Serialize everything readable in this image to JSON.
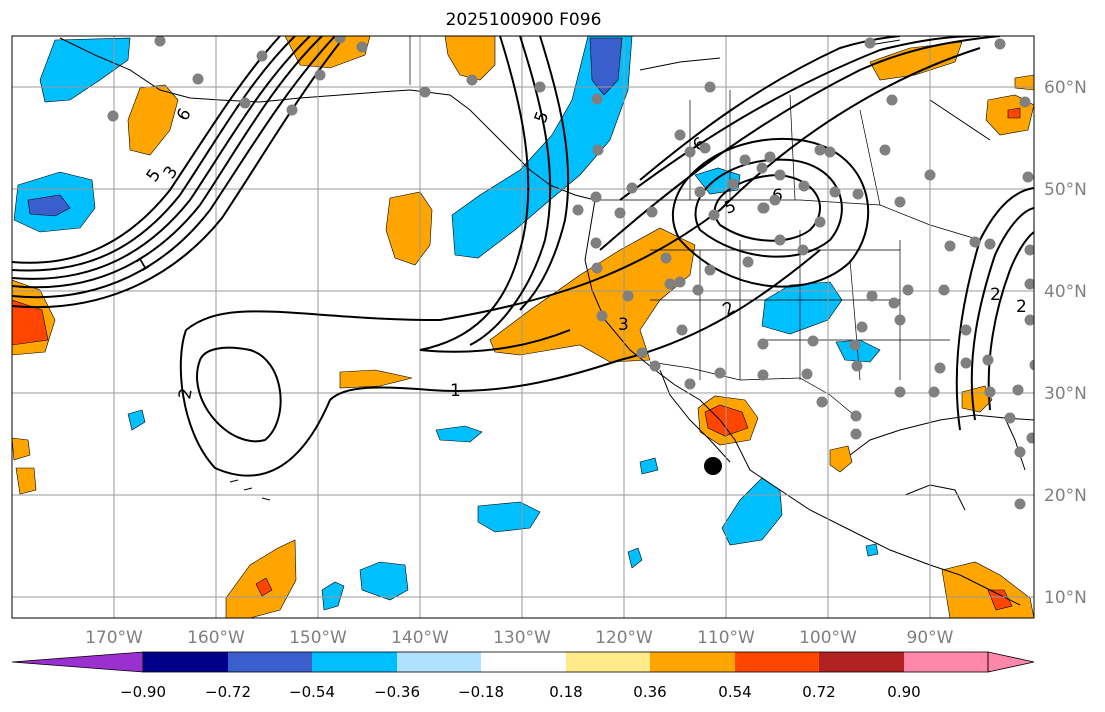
{
  "title": "2025100900 F096",
  "map": {
    "lon_labels": [
      "170°W",
      "160°W",
      "150°W",
      "140°W",
      "130°W",
      "120°W",
      "110°W",
      "100°W",
      "90°W"
    ],
    "lat_labels": [
      "60°N",
      "50°N",
      "40°N",
      "30°N",
      "20°N",
      "10°N"
    ],
    "contour_labels": [
      "6",
      "5",
      "3",
      "1",
      "2",
      "1",
      "3",
      "2",
      "6",
      "5",
      "6",
      "2",
      "5",
      "2"
    ]
  },
  "colorbar": {
    "ticks": [
      "−0.90",
      "−0.72",
      "−0.54",
      "−0.36",
      "−0.18",
      "0.18",
      "0.36",
      "0.54",
      "0.72",
      "0.90"
    ],
    "colors": [
      "#9b30d0",
      "#00008b",
      "#3a5fcd",
      "#00bfff",
      "#b0e2ff",
      "#ffffff",
      "#ffeb8a",
      "#ffa500",
      "#ff4500",
      "#b22222",
      "#ff88aa",
      "#ff88aa"
    ]
  }
}
